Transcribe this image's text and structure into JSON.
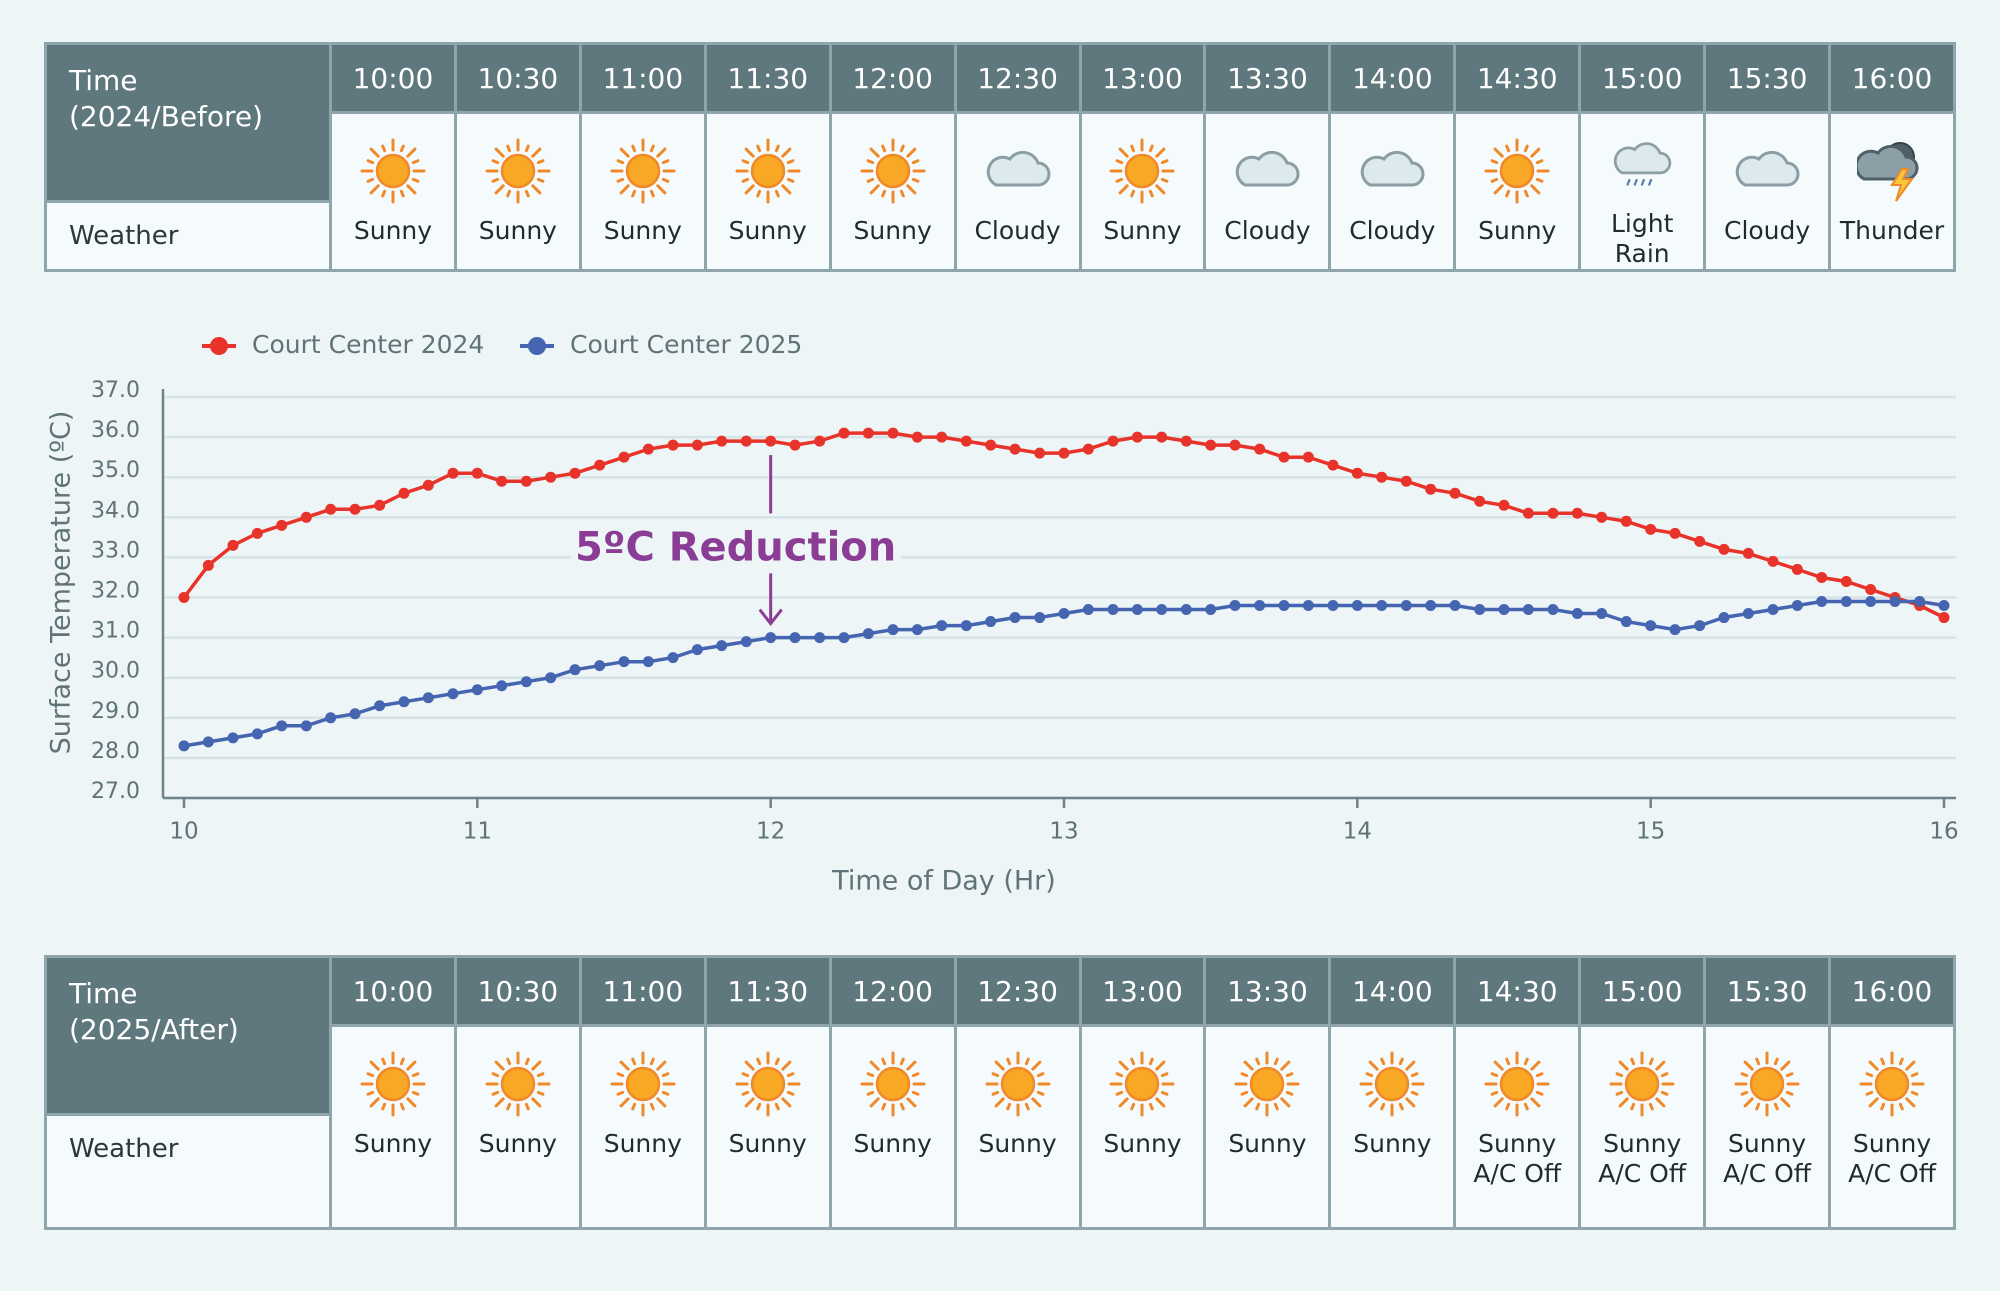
{
  "top_table": {
    "time_header": "Time\n(2024/Before)",
    "weather_header": "Weather",
    "times": [
      "10:00",
      "10:30",
      "11:00",
      "11:30",
      "12:00",
      "12:30",
      "13:00",
      "13:30",
      "14:00",
      "14:30",
      "15:00",
      "15:30",
      "16:00"
    ],
    "weather": [
      "Sunny",
      "Sunny",
      "Sunny",
      "Sunny",
      "Sunny",
      "Cloudy",
      "Sunny",
      "Cloudy",
      "Cloudy",
      "Sunny",
      "Light Rain",
      "Cloudy",
      "Thunder"
    ]
  },
  "bottom_table": {
    "time_header": "Time\n(2025/After)",
    "weather_header": "Weather",
    "times": [
      "10:00",
      "10:30",
      "11:00",
      "11:30",
      "12:00",
      "12:30",
      "13:00",
      "13:30",
      "14:00",
      "14:30",
      "15:00",
      "15:30",
      "16:00"
    ],
    "weather": [
      "Sunny",
      "Sunny",
      "Sunny",
      "Sunny",
      "Sunny",
      "Sunny",
      "Sunny",
      "Sunny",
      "Sunny",
      "Sunny\nA/C Off",
      "Sunny\nA/C Off",
      "Sunny\nA/C Off",
      "Sunny\nA/C Off"
    ]
  },
  "chart_data": {
    "type": "line",
    "x_label": "Time of Day (Hr)",
    "y_label": "Surface Temperature (ºC)",
    "annotation": {
      "text": "5ºC Reduction",
      "x": 12
    },
    "x": [
      10,
      10.083,
      10.167,
      10.25,
      10.333,
      10.417,
      10.5,
      10.583,
      10.667,
      10.75,
      10.833,
      10.917,
      11,
      11.083,
      11.167,
      11.25,
      11.333,
      11.417,
      11.5,
      11.583,
      11.667,
      11.75,
      11.833,
      11.917,
      12,
      12.083,
      12.167,
      12.25,
      12.333,
      12.417,
      12.5,
      12.583,
      12.667,
      12.75,
      12.833,
      12.917,
      13,
      13.083,
      13.167,
      13.25,
      13.333,
      13.417,
      13.5,
      13.583,
      13.667,
      13.75,
      13.833,
      13.917,
      14,
      14.083,
      14.167,
      14.25,
      14.333,
      14.417,
      14.5,
      14.583,
      14.667,
      14.75,
      14.833,
      14.917,
      15,
      15.083,
      15.167,
      15.25,
      15.333,
      15.417,
      15.5,
      15.583,
      15.667,
      15.75,
      15.833,
      15.917,
      16
    ],
    "series": [
      {
        "name": "Court Center 2024",
        "color": "#e8332a",
        "values": [
          32.0,
          32.8,
          33.3,
          33.6,
          33.8,
          34.0,
          34.2,
          34.2,
          34.3,
          34.6,
          34.8,
          35.1,
          35.1,
          34.9,
          34.9,
          35.0,
          35.1,
          35.3,
          35.5,
          35.7,
          35.8,
          35.8,
          35.9,
          35.9,
          35.9,
          35.8,
          35.9,
          36.1,
          36.1,
          36.1,
          36.0,
          36.0,
          35.9,
          35.8,
          35.7,
          35.6,
          35.6,
          35.7,
          35.9,
          36.0,
          36.0,
          35.9,
          35.8,
          35.8,
          35.7,
          35.5,
          35.5,
          35.3,
          35.1,
          35.0,
          34.9,
          34.7,
          34.6,
          34.4,
          34.3,
          34.1,
          34.1,
          34.1,
          34.0,
          33.9,
          33.7,
          33.6,
          33.4,
          33.2,
          33.1,
          32.9,
          32.7,
          32.5,
          32.4,
          32.2,
          32.0,
          31.8,
          31.5
        ]
      },
      {
        "name": "Court Center 2025",
        "color": "#4565b0",
        "values": [
          28.3,
          28.4,
          28.5,
          28.6,
          28.8,
          28.8,
          29.0,
          29.1,
          29.3,
          29.4,
          29.5,
          29.6,
          29.7,
          29.8,
          29.9,
          30.0,
          30.2,
          30.3,
          30.4,
          30.4,
          30.5,
          30.7,
          30.8,
          30.9,
          31.0,
          31.0,
          31.0,
          31.0,
          31.1,
          31.2,
          31.2,
          31.3,
          31.3,
          31.4,
          31.5,
          31.5,
          31.6,
          31.7,
          31.7,
          31.7,
          31.7,
          31.7,
          31.7,
          31.8,
          31.8,
          31.8,
          31.8,
          31.8,
          31.8,
          31.8,
          31.8,
          31.8,
          31.8,
          31.7,
          31.7,
          31.7,
          31.7,
          31.6,
          31.6,
          31.4,
          31.3,
          31.2,
          31.3,
          31.5,
          31.6,
          31.7,
          31.8,
          31.9,
          31.9,
          31.9,
          31.9,
          31.9,
          31.8
        ]
      }
    ],
    "xlim": [
      10,
      16
    ],
    "xticks": [
      10,
      11,
      12,
      13,
      14,
      15,
      16
    ],
    "ylim": [
      27,
      37
    ],
    "yticks": [
      {
        "value": 27,
        "label": "27.0"
      },
      {
        "value": 28,
        "label": "28.0"
      },
      {
        "value": 29,
        "label": "29.0"
      },
      {
        "value": 30,
        "label": "30.0"
      },
      {
        "value": 31,
        "label": "31.0"
      },
      {
        "value": 32,
        "label": "32.0"
      },
      {
        "value": 33,
        "label": "33.0"
      },
      {
        "value": 34,
        "label": "34.0"
      },
      {
        "value": 35,
        "label": "35.0"
      },
      {
        "value": 36,
        "label": "36.0"
      },
      {
        "value": 37,
        "label": "37.0"
      }
    ],
    "grid": true,
    "legend": "top-left"
  }
}
